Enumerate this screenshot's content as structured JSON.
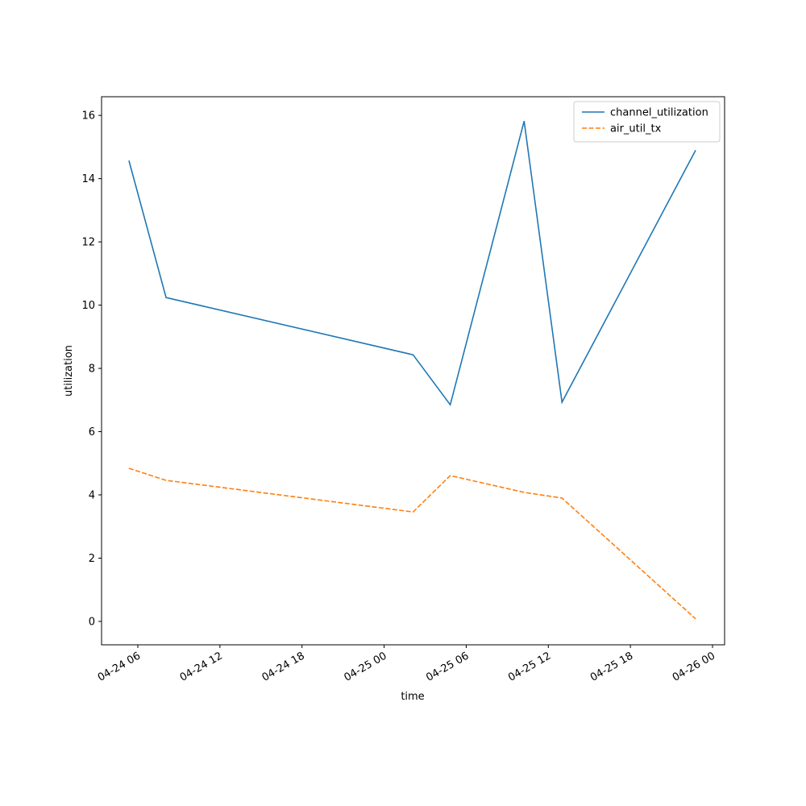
{
  "chart_data": {
    "type": "line",
    "x_label": "time",
    "y_label": "utilization",
    "x": [
      "04-24 05:21",
      "04-24 08:04",
      "04-25 02:07",
      "04-25 04:50",
      "04-25 10:14",
      "04-25 13:00",
      "04-25 22:46"
    ],
    "series": [
      {
        "name": "channel_utilization",
        "color": "#1f77b4",
        "dash": "solid",
        "values": [
          14.57,
          10.24,
          8.43,
          6.85,
          15.82,
          6.93,
          14.9
        ]
      },
      {
        "name": "air_util_tx",
        "color": "#ff7f0e",
        "dash": "dashed",
        "values": [
          4.84,
          4.46,
          3.46,
          4.61,
          4.08,
          3.9,
          0.08
        ]
      }
    ],
    "xlim": [
      "04-24 03:21",
      "04-26 00:53"
    ],
    "xticks": [
      "04-24 06",
      "04-24 12",
      "04-24 18",
      "04-25 00",
      "04-25 06",
      "04-25 12",
      "04-25 18",
      "04-26 00"
    ],
    "ylim": [
      -0.74,
      16.59
    ],
    "yticks": [
      0,
      2,
      4,
      6,
      8,
      10,
      12,
      14,
      16
    ],
    "legend": "upper right",
    "grid": false
  }
}
